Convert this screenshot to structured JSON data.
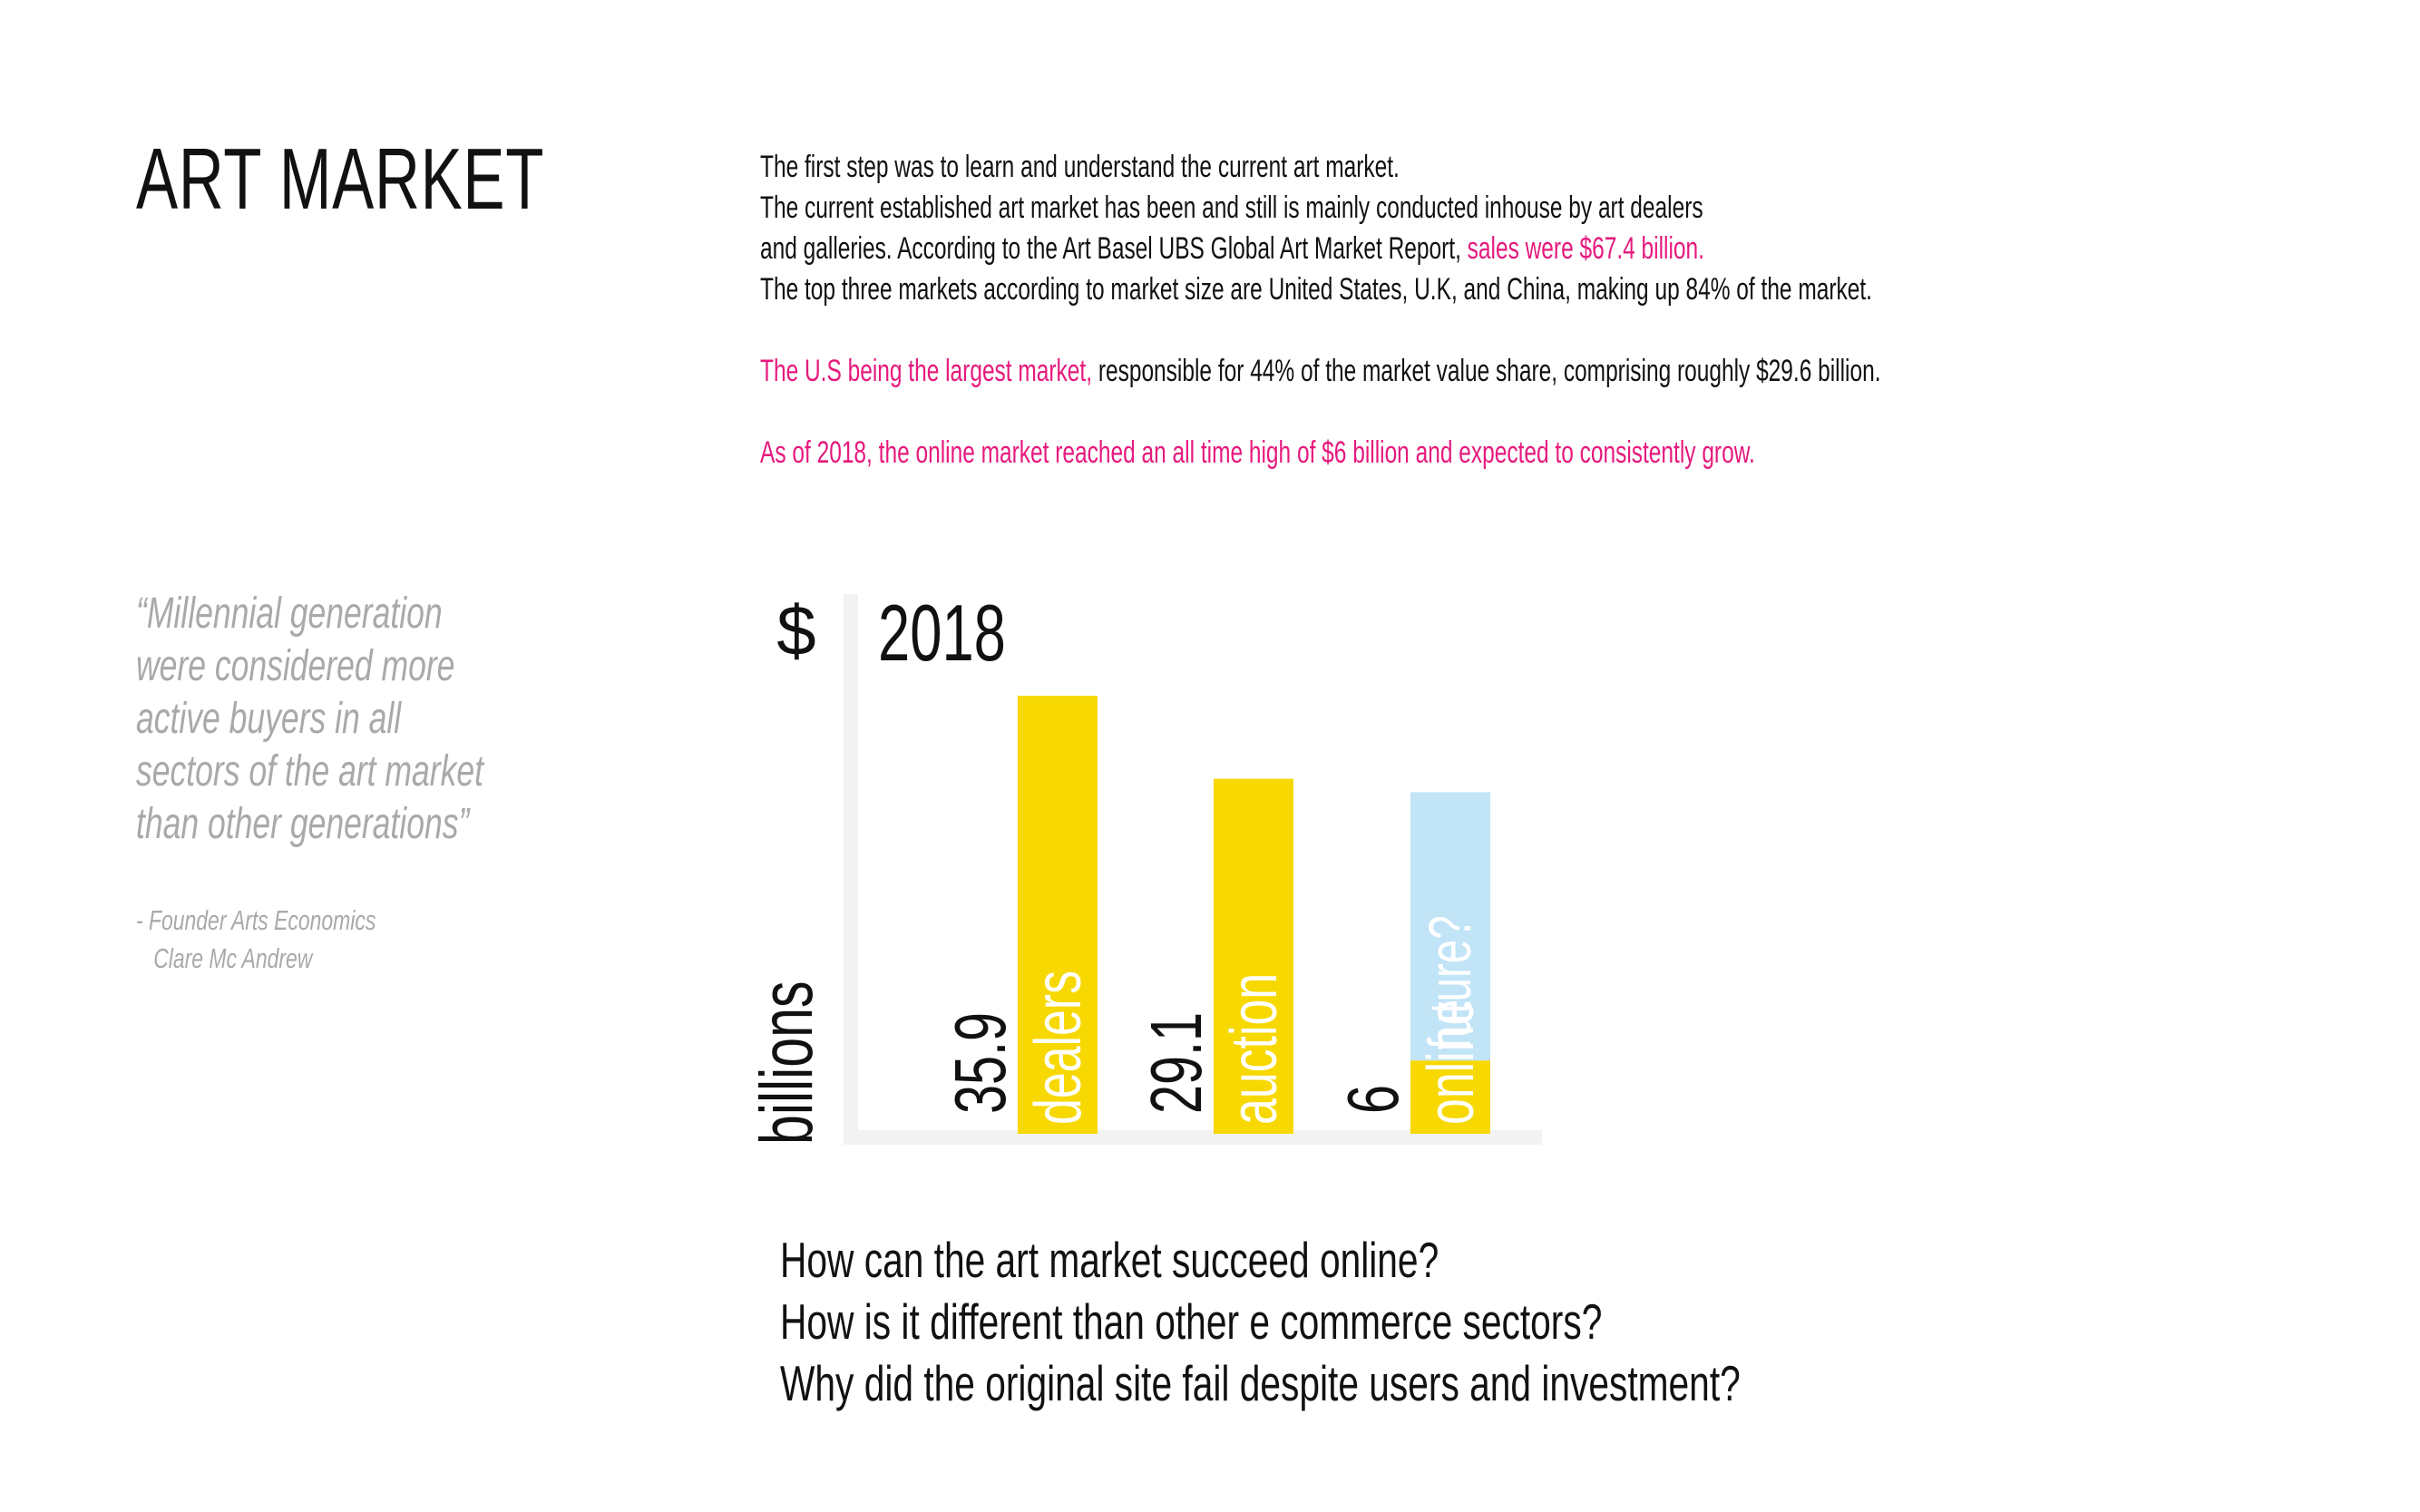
{
  "page": {
    "title": "ART MARKET"
  },
  "intro": {
    "line1": "The first step was to learn and understand the current art market.",
    "line2": "The current established art market has been and still is mainly conducted inhouse by art dealers",
    "line3_a": "and galleries.  According to the Art Basel UBS Global Art Market Report, ",
    "line3_b": "sales were $67.4 billion.",
    "line4": "The top  three markets according to market size are United States, U.K, and China, making up 84% of the market.",
    "line5_a": "The U.S  being the largest market, ",
    "line5_b": "responsible for 44% of the market value share, comprising roughly  $29.6 billion.",
    "line6": "As of 2018, the online market reached an all time high of $6 billion and expected to consistently grow."
  },
  "quote": {
    "lines": [
      "“Millennial generation",
      "were considered more",
      "active buyers in all",
      "sectors of the art market",
      "than other generations”"
    ],
    "attribution_1": "- Founder Arts Economics",
    "attribution_2": "Clare Mc Andrew"
  },
  "colors": {
    "accent_pink": "#e6197d",
    "bar_yellow": "#f7d800",
    "future_blue": "#c2e4f7",
    "axis_gray": "#f2f2f2",
    "quote_gray": "#a9a9a9"
  },
  "chart_data": {
    "type": "bar",
    "title": "2018",
    "ylabel": "billions",
    "yunit": "$",
    "categories": [
      "dealers",
      "auction",
      "online"
    ],
    "values": [
      35.9,
      29.1,
      6
    ],
    "value_labels": [
      "35.9",
      "29.1",
      "6"
    ],
    "projection": {
      "category": "online",
      "label": "future?",
      "top_value": 28
    },
    "ylim": [
      0,
      37
    ],
    "grid": false,
    "legend": "none"
  },
  "questions": [
    "How can the art market succeed online?",
    "How is it different than other e commerce sectors?",
    "Why did the original site fail despite users and investment?"
  ]
}
